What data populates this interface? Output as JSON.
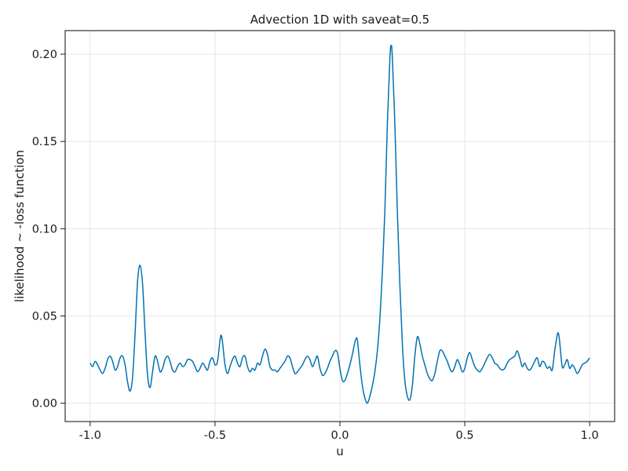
{
  "chart_data": {
    "type": "line",
    "title": "Advection 1D with saveat=0.5",
    "xlabel": "u",
    "ylabel": "likelihood ~ -loss function",
    "xlim": [
      -1.1,
      1.1
    ],
    "ylim": [
      -0.0105,
      0.2135
    ],
    "xticks": [
      -1.0,
      -0.5,
      0.0,
      0.5,
      1.0
    ],
    "xtick_labels": [
      "-1.0",
      "-0.5",
      "0.0",
      "0.5",
      "1.0"
    ],
    "yticks": [
      0.0,
      0.05,
      0.1,
      0.15,
      0.2
    ],
    "ytick_labels": [
      "0.00",
      "0.05",
      "0.10",
      "0.15",
      "0.20"
    ],
    "grid": true,
    "legend": "none",
    "series": [
      {
        "color": "#0072b2",
        "points": [
          [
            -1.0,
            0.023
          ],
          [
            -0.99,
            0.021
          ],
          [
            -0.98,
            0.024
          ],
          [
            -0.97,
            0.022
          ],
          [
            -0.96,
            0.019
          ],
          [
            -0.95,
            0.017
          ],
          [
            -0.94,
            0.02
          ],
          [
            -0.93,
            0.025
          ],
          [
            -0.92,
            0.027
          ],
          [
            -0.91,
            0.024
          ],
          [
            -0.9,
            0.019
          ],
          [
            -0.89,
            0.021
          ],
          [
            -0.88,
            0.026
          ],
          [
            -0.87,
            0.027
          ],
          [
            -0.86,
            0.022
          ],
          [
            -0.85,
            0.012
          ],
          [
            -0.84,
            0.007
          ],
          [
            -0.83,
            0.015
          ],
          [
            -0.82,
            0.04
          ],
          [
            -0.81,
            0.07
          ],
          [
            -0.8,
            0.079
          ],
          [
            -0.79,
            0.068
          ],
          [
            -0.78,
            0.04
          ],
          [
            -0.77,
            0.016
          ],
          [
            -0.76,
            0.009
          ],
          [
            -0.75,
            0.018
          ],
          [
            -0.74,
            0.027
          ],
          [
            -0.73,
            0.024
          ],
          [
            -0.72,
            0.018
          ],
          [
            -0.71,
            0.02
          ],
          [
            -0.7,
            0.025
          ],
          [
            -0.69,
            0.027
          ],
          [
            -0.68,
            0.024
          ],
          [
            -0.67,
            0.019
          ],
          [
            -0.66,
            0.018
          ],
          [
            -0.65,
            0.021
          ],
          [
            -0.64,
            0.023
          ],
          [
            -0.63,
            0.021
          ],
          [
            -0.62,
            0.022
          ],
          [
            -0.61,
            0.025
          ],
          [
            -0.6,
            0.025
          ],
          [
            -0.59,
            0.024
          ],
          [
            -0.58,
            0.021
          ],
          [
            -0.57,
            0.018
          ],
          [
            -0.56,
            0.02
          ],
          [
            -0.55,
            0.023
          ],
          [
            -0.54,
            0.021
          ],
          [
            -0.53,
            0.019
          ],
          [
            -0.52,
            0.024
          ],
          [
            -0.51,
            0.026
          ],
          [
            -0.5,
            0.022
          ],
          [
            -0.49,
            0.024
          ],
          [
            -0.48,
            0.036
          ],
          [
            -0.475,
            0.039
          ],
          [
            -0.47,
            0.035
          ],
          [
            -0.46,
            0.022
          ],
          [
            -0.45,
            0.017
          ],
          [
            -0.44,
            0.021
          ],
          [
            -0.43,
            0.025
          ],
          [
            -0.42,
            0.027
          ],
          [
            -0.41,
            0.023
          ],
          [
            -0.4,
            0.021
          ],
          [
            -0.39,
            0.026
          ],
          [
            -0.38,
            0.027
          ],
          [
            -0.37,
            0.021
          ],
          [
            -0.36,
            0.018
          ],
          [
            -0.35,
            0.02
          ],
          [
            -0.34,
            0.019
          ],
          [
            -0.33,
            0.023
          ],
          [
            -0.32,
            0.022
          ],
          [
            -0.31,
            0.027
          ],
          [
            -0.3,
            0.031
          ],
          [
            -0.29,
            0.028
          ],
          [
            -0.28,
            0.021
          ],
          [
            -0.27,
            0.019
          ],
          [
            -0.26,
            0.019
          ],
          [
            -0.25,
            0.018
          ],
          [
            -0.24,
            0.02
          ],
          [
            -0.23,
            0.022
          ],
          [
            -0.22,
            0.024
          ],
          [
            -0.21,
            0.027
          ],
          [
            -0.2,
            0.026
          ],
          [
            -0.19,
            0.021
          ],
          [
            -0.18,
            0.017
          ],
          [
            -0.17,
            0.018
          ],
          [
            -0.16,
            0.02
          ],
          [
            -0.15,
            0.022
          ],
          [
            -0.14,
            0.025
          ],
          [
            -0.13,
            0.027
          ],
          [
            -0.12,
            0.025
          ],
          [
            -0.11,
            0.021
          ],
          [
            -0.1,
            0.024
          ],
          [
            -0.09,
            0.027
          ],
          [
            -0.08,
            0.02
          ],
          [
            -0.07,
            0.016
          ],
          [
            -0.06,
            0.017
          ],
          [
            -0.05,
            0.02
          ],
          [
            -0.04,
            0.024
          ],
          [
            -0.03,
            0.027
          ],
          [
            -0.02,
            0.03
          ],
          [
            -0.01,
            0.029
          ],
          [
            0.0,
            0.02
          ],
          [
            0.01,
            0.013
          ],
          [
            0.02,
            0.013
          ],
          [
            0.03,
            0.017
          ],
          [
            0.04,
            0.022
          ],
          [
            0.05,
            0.028
          ],
          [
            0.06,
            0.035
          ],
          [
            0.065,
            0.037
          ],
          [
            0.07,
            0.036
          ],
          [
            0.08,
            0.022
          ],
          [
            0.09,
            0.01
          ],
          [
            0.1,
            0.003
          ],
          [
            0.11,
            0.0
          ],
          [
            0.12,
            0.004
          ],
          [
            0.13,
            0.01
          ],
          [
            0.14,
            0.018
          ],
          [
            0.15,
            0.03
          ],
          [
            0.16,
            0.048
          ],
          [
            0.17,
            0.075
          ],
          [
            0.18,
            0.11
          ],
          [
            0.19,
            0.16
          ],
          [
            0.2,
            0.197
          ],
          [
            0.205,
            0.205
          ],
          [
            0.21,
            0.198
          ],
          [
            0.22,
            0.16
          ],
          [
            0.23,
            0.11
          ],
          [
            0.24,
            0.068
          ],
          [
            0.25,
            0.034
          ],
          [
            0.26,
            0.013
          ],
          [
            0.27,
            0.004
          ],
          [
            0.28,
            0.002
          ],
          [
            0.29,
            0.01
          ],
          [
            0.3,
            0.027
          ],
          [
            0.31,
            0.038
          ],
          [
            0.32,
            0.034
          ],
          [
            0.33,
            0.027
          ],
          [
            0.34,
            0.022
          ],
          [
            0.35,
            0.017
          ],
          [
            0.36,
            0.014
          ],
          [
            0.37,
            0.013
          ],
          [
            0.38,
            0.017
          ],
          [
            0.39,
            0.024
          ],
          [
            0.4,
            0.03
          ],
          [
            0.41,
            0.03
          ],
          [
            0.42,
            0.027
          ],
          [
            0.43,
            0.024
          ],
          [
            0.44,
            0.02
          ],
          [
            0.45,
            0.018
          ],
          [
            0.46,
            0.021
          ],
          [
            0.47,
            0.025
          ],
          [
            0.48,
            0.022
          ],
          [
            0.49,
            0.018
          ],
          [
            0.5,
            0.02
          ],
          [
            0.51,
            0.026
          ],
          [
            0.52,
            0.029
          ],
          [
            0.53,
            0.025
          ],
          [
            0.54,
            0.021
          ],
          [
            0.55,
            0.019
          ],
          [
            0.56,
            0.018
          ],
          [
            0.57,
            0.02
          ],
          [
            0.58,
            0.023
          ],
          [
            0.59,
            0.026
          ],
          [
            0.6,
            0.028
          ],
          [
            0.61,
            0.026
          ],
          [
            0.62,
            0.023
          ],
          [
            0.63,
            0.022
          ],
          [
            0.64,
            0.02
          ],
          [
            0.65,
            0.019
          ],
          [
            0.66,
            0.02
          ],
          [
            0.67,
            0.023
          ],
          [
            0.68,
            0.025
          ],
          [
            0.69,
            0.026
          ],
          [
            0.7,
            0.027
          ],
          [
            0.71,
            0.03
          ],
          [
            0.72,
            0.026
          ],
          [
            0.73,
            0.021
          ],
          [
            0.74,
            0.023
          ],
          [
            0.75,
            0.02
          ],
          [
            0.76,
            0.019
          ],
          [
            0.77,
            0.021
          ],
          [
            0.78,
            0.024
          ],
          [
            0.79,
            0.026
          ],
          [
            0.8,
            0.021
          ],
          [
            0.81,
            0.024
          ],
          [
            0.82,
            0.023
          ],
          [
            0.83,
            0.02
          ],
          [
            0.84,
            0.021
          ],
          [
            0.85,
            0.019
          ],
          [
            0.86,
            0.03
          ],
          [
            0.87,
            0.039
          ],
          [
            0.875,
            0.04
          ],
          [
            0.88,
            0.035
          ],
          [
            0.89,
            0.021
          ],
          [
            0.9,
            0.022
          ],
          [
            0.91,
            0.025
          ],
          [
            0.92,
            0.02
          ],
          [
            0.93,
            0.022
          ],
          [
            0.94,
            0.02
          ],
          [
            0.95,
            0.017
          ],
          [
            0.96,
            0.019
          ],
          [
            0.97,
            0.022
          ],
          [
            0.98,
            0.023
          ],
          [
            0.99,
            0.024
          ],
          [
            1.0,
            0.026
          ]
        ]
      }
    ]
  }
}
